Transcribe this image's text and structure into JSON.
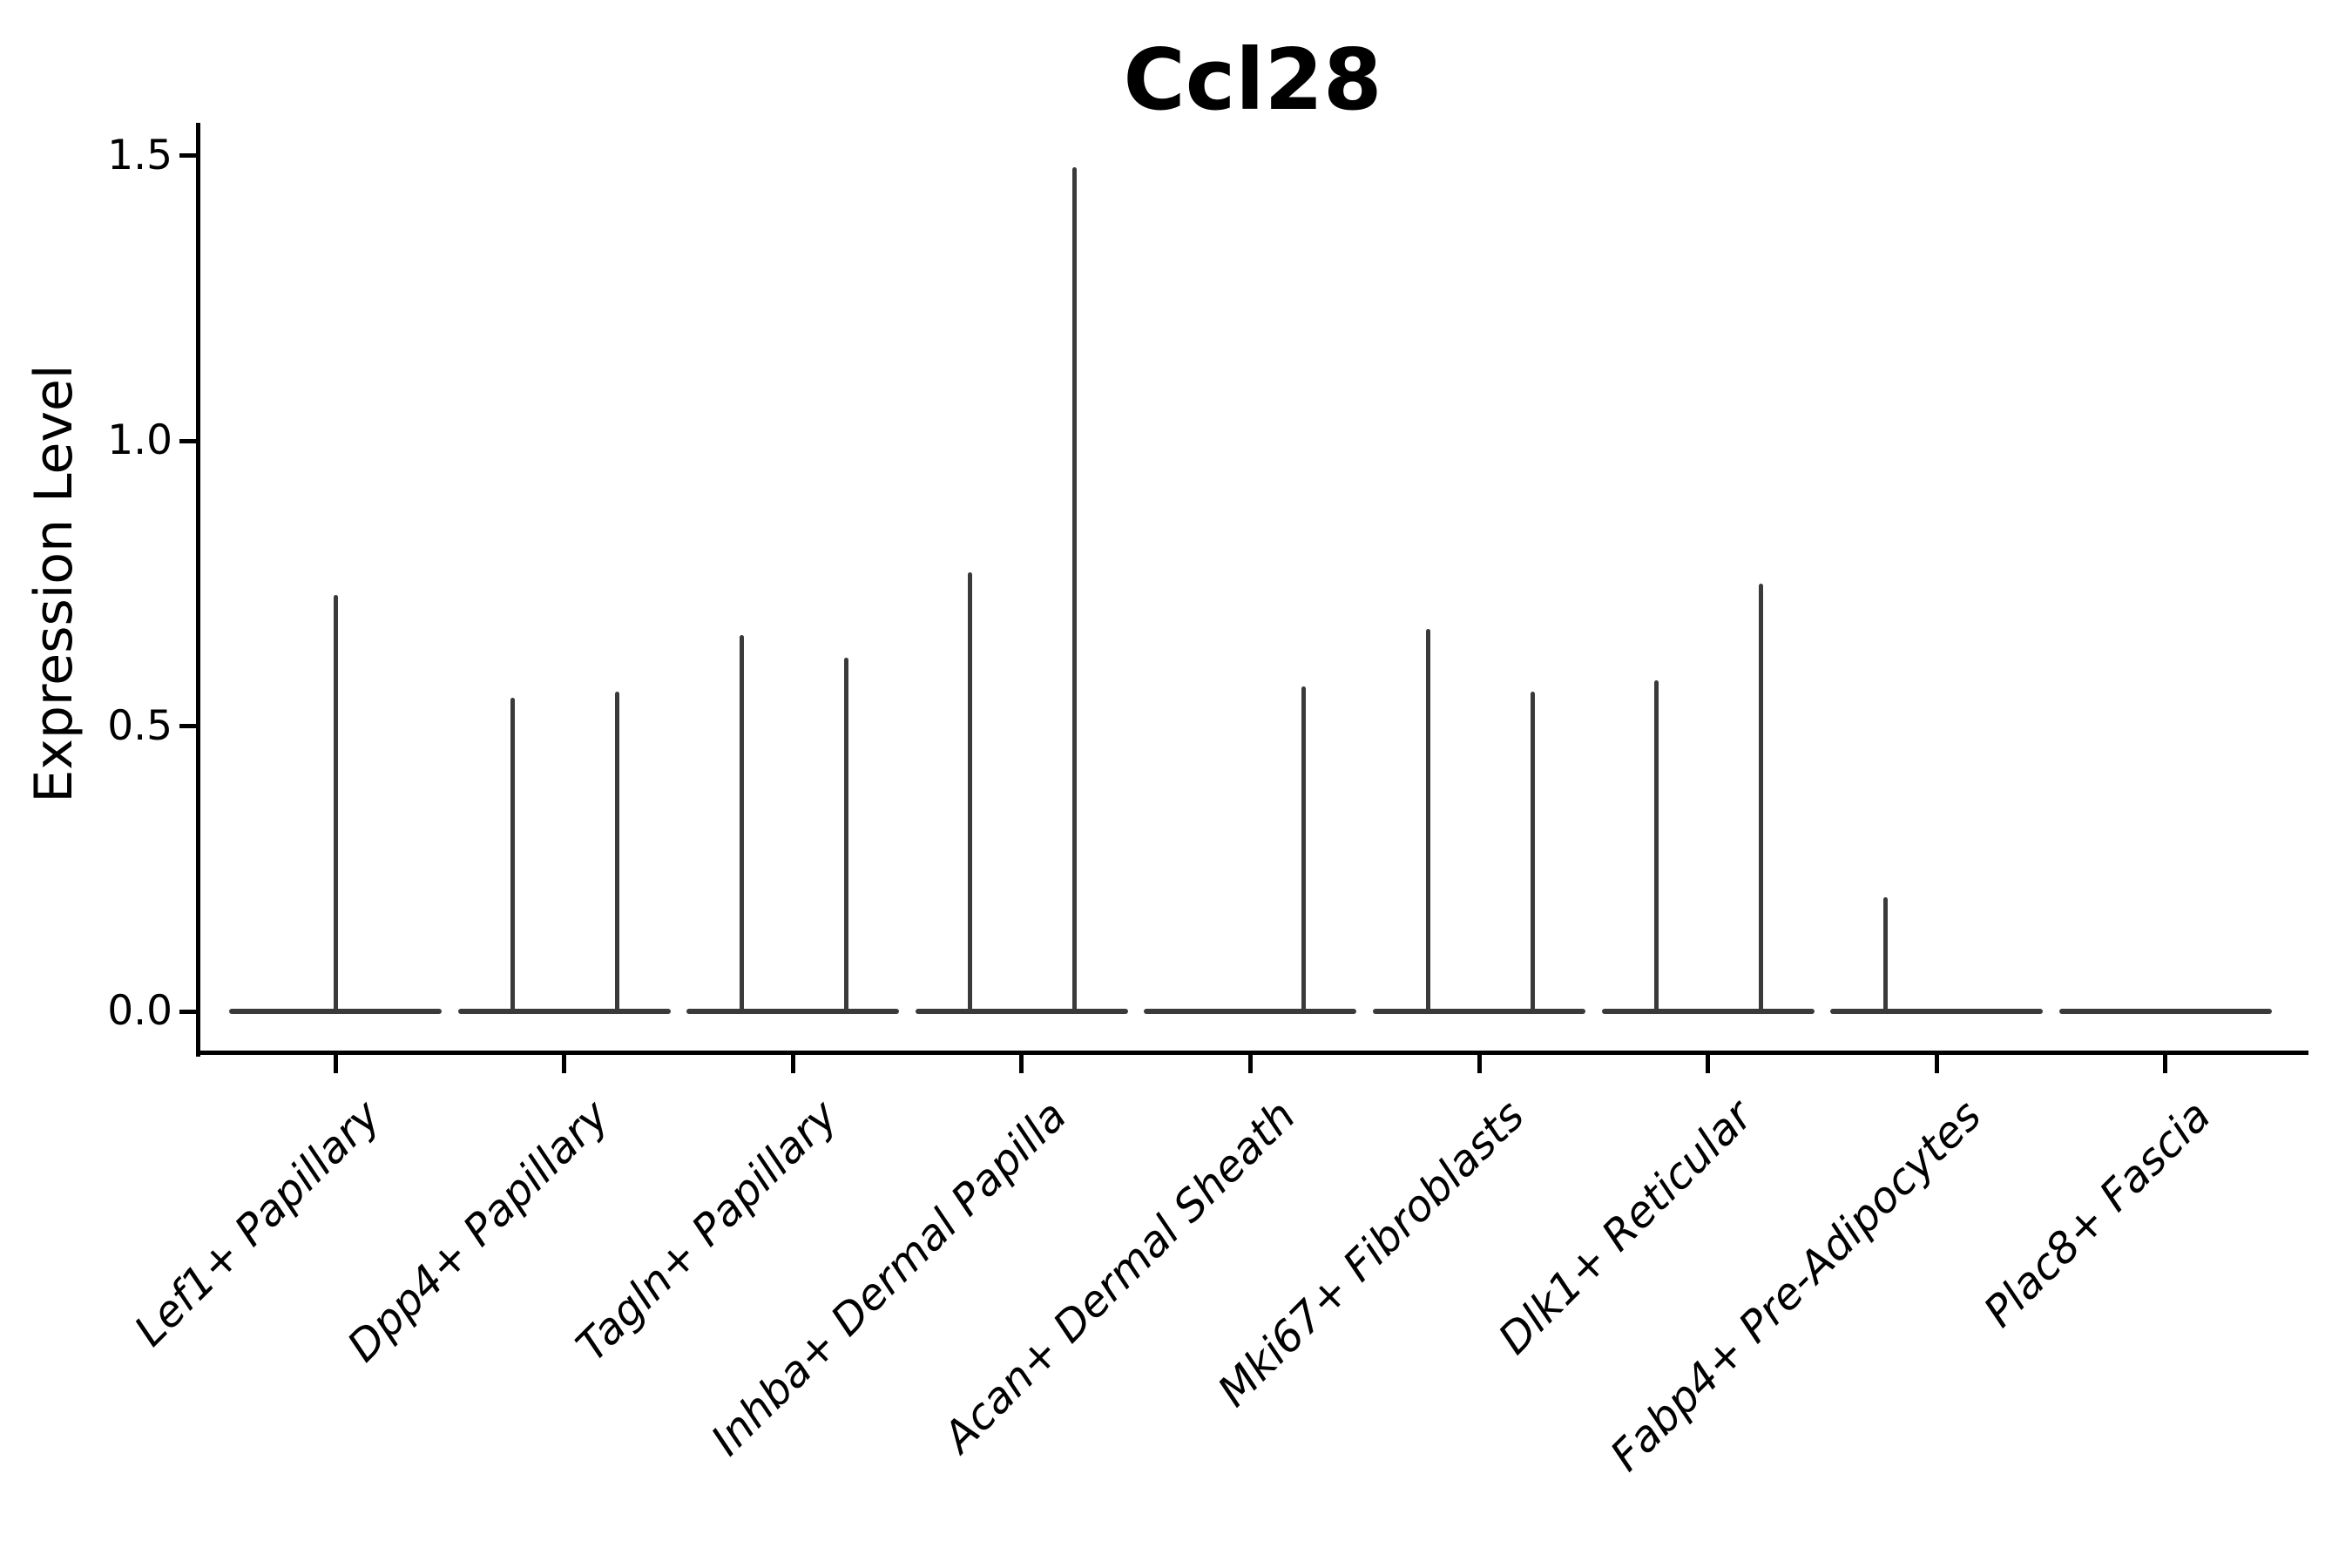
{
  "chart": {
    "title": "Ccl28",
    "ylabel": "Expression Level"
  },
  "chart_data": {
    "type": "violin",
    "title": "Ccl28",
    "xlabel": "",
    "ylabel": "Expression Level",
    "ylim": [
      -0.07,
      1.56
    ],
    "yticks": [
      "0.0",
      "0.5",
      "1.0",
      "1.5"
    ],
    "grid": false,
    "legend": "none",
    "baseline_value": 0,
    "categories": [
      "Lef1+ Papillary",
      "Dpp4+ Papillary",
      "Tagln+ Papillary",
      "Inhba+ Dermal Papilla",
      "Acan+ Dermal Sheath",
      "Mki67+ Fibroblasts",
      "Dlk1+ Reticular",
      "Fabp4+ Pre-Adipocytes",
      "Plac8+ Fascia"
    ],
    "series": [
      {
        "category": "Lef1+ Papillary",
        "violins": [
          {
            "position": "center",
            "max": 0.73
          }
        ]
      },
      {
        "category": "Dpp4+ Papillary",
        "violins": [
          {
            "position": "left",
            "max": 0.55
          },
          {
            "position": "right",
            "max": 0.56
          }
        ]
      },
      {
        "category": "Tagln+ Papillary",
        "violins": [
          {
            "position": "left",
            "max": 0.66
          },
          {
            "position": "right",
            "max": 0.62
          }
        ]
      },
      {
        "category": "Inhba+ Dermal Papilla",
        "violins": [
          {
            "position": "left",
            "max": 0.77
          },
          {
            "position": "right",
            "max": 1.48
          }
        ]
      },
      {
        "category": "Acan+ Dermal Sheath",
        "violins": [
          {
            "position": "right",
            "max": 0.57
          }
        ]
      },
      {
        "category": "Mki67+ Fibroblasts",
        "violins": [
          {
            "position": "left",
            "max": 0.67
          },
          {
            "position": "right",
            "max": 0.56
          }
        ]
      },
      {
        "category": "Dlk1+ Reticular",
        "violins": [
          {
            "position": "left",
            "max": 0.58
          },
          {
            "position": "right",
            "max": 0.75
          }
        ]
      },
      {
        "category": "Fabp4+ Pre-Adipocytes",
        "violins": [
          {
            "position": "left",
            "max": 0.2
          }
        ]
      },
      {
        "category": "Plac8+ Fascia",
        "violins": []
      }
    ],
    "colors": {
      "violin": "#3a3a3a",
      "axis": "#000000",
      "text": "#000000"
    }
  }
}
